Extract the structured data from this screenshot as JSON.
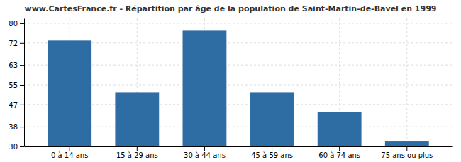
{
  "chart_data": {
    "type": "bar",
    "title": "www.CartesFrance.fr - Répartition par âge de la population de Saint-Martin-de-Bavel en 1999",
    "categories": [
      "0 à 14 ans",
      "15 à 29 ans",
      "30 à 44 ans",
      "45 à 59 ans",
      "60 à 74 ans",
      "75 ans ou plus"
    ],
    "values": [
      73,
      52,
      77,
      52,
      44,
      32
    ],
    "color": "#2e6da4",
    "ylim": [
      30,
      82
    ],
    "yticks": [
      30,
      38,
      47,
      55,
      63,
      72,
      80
    ],
    "grid": true
  }
}
